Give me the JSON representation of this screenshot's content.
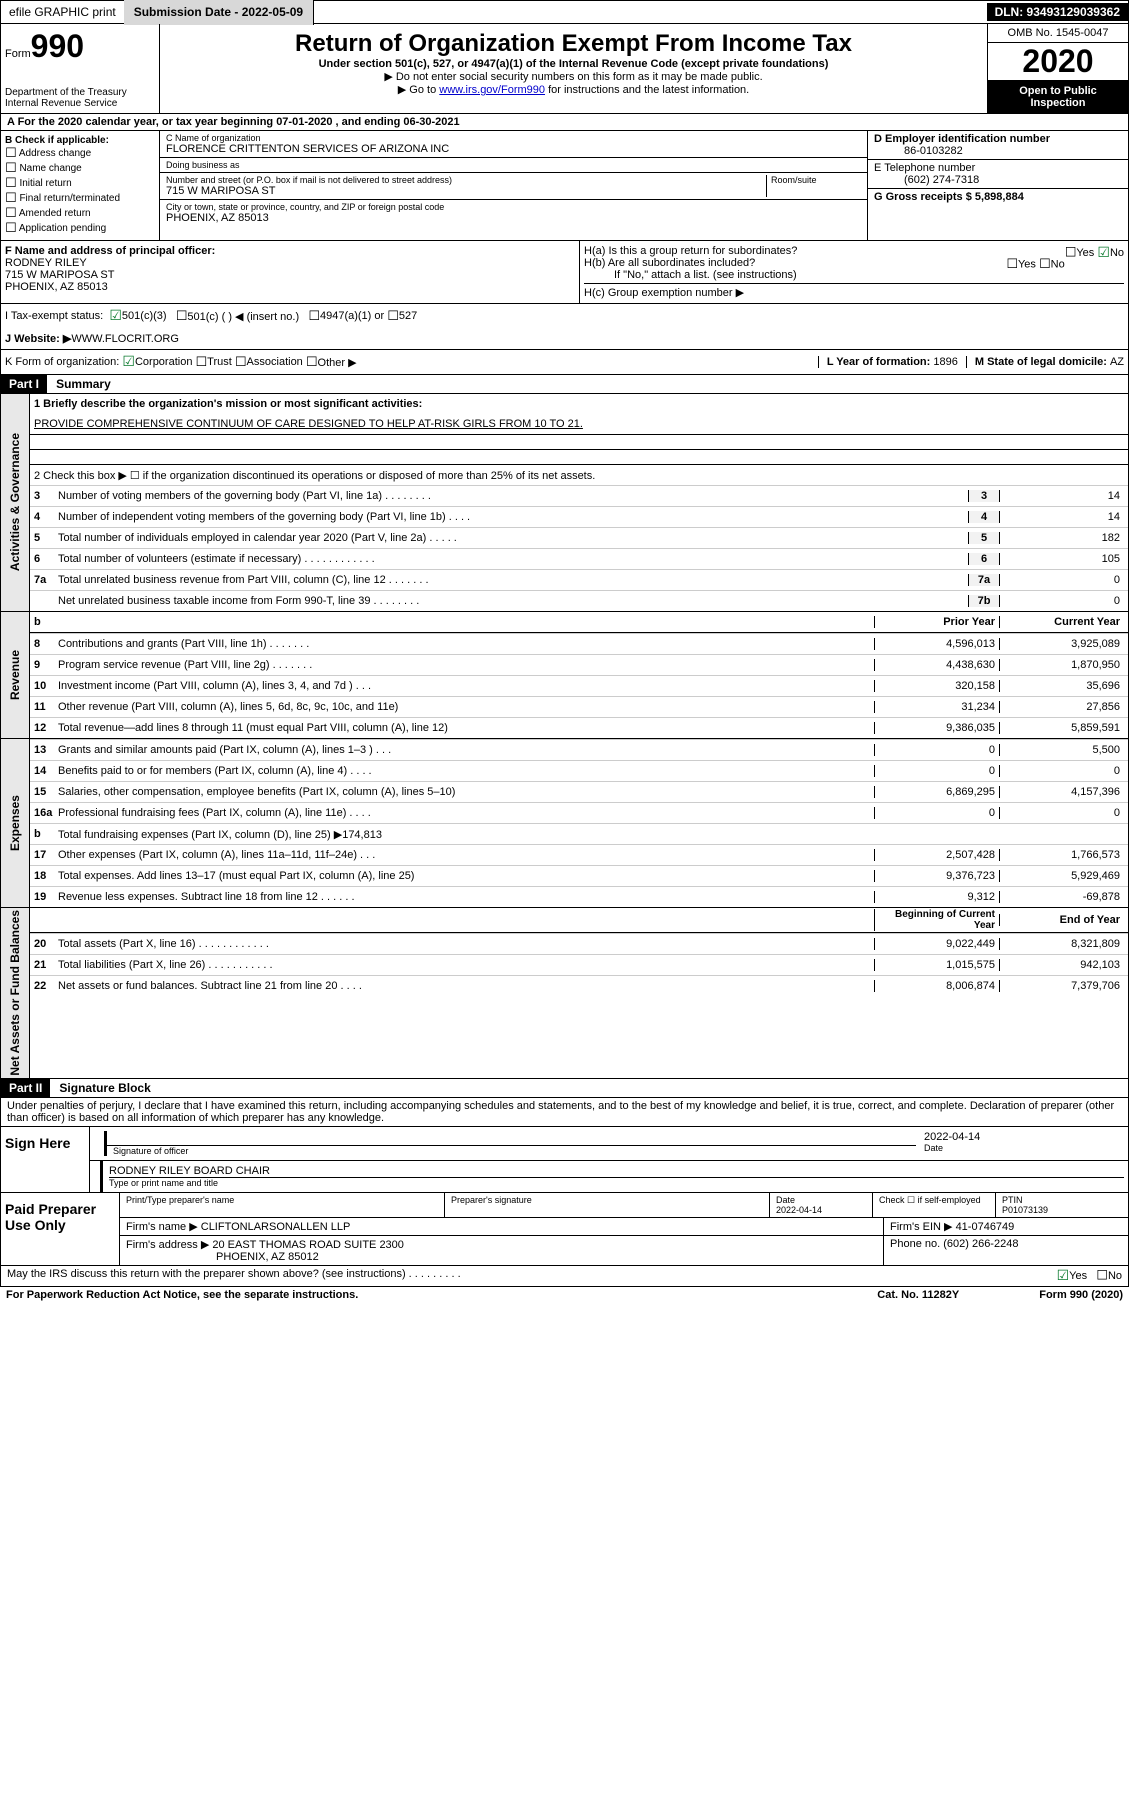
{
  "colors": {
    "black": "#000000",
    "white": "#ffffff",
    "gray_btn": "#d8d8d8",
    "gray_vcol": "#e8e8e8",
    "link": "#0000cc",
    "check_green": "#0b7a2e",
    "border": "#000000"
  },
  "topbar": {
    "efile": "efile GRAPHIC print",
    "submission_label": "Submission Date - 2022-05-09",
    "dln": "DLN: 93493129039362"
  },
  "header": {
    "form_label": "Form",
    "form_number": "990",
    "dept": "Department of the Treasury",
    "irs": "Internal Revenue Service",
    "title": "Return of Organization Exempt From Income Tax",
    "subtitle": "Under section 501(c), 527, or 4947(a)(1) of the Internal Revenue Code (except private foundations)",
    "note1": "▶ Do not enter social security numbers on this form as it may be made public.",
    "note2": "▶ Go to ",
    "note2_link": "www.irs.gov/Form990",
    "note2_after": " for instructions and the latest information.",
    "omb": "OMB No. 1545-0047",
    "year": "2020",
    "open": "Open to Public Inspection"
  },
  "lineA": "A For the 2020 calendar year, or tax year beginning 07-01-2020   , and ending 06-30-2021",
  "B": {
    "heading": "B Check if applicable:",
    "items": [
      "Address change",
      "Name change",
      "Initial return",
      "Final return/terminated",
      "Amended return",
      "Application pending"
    ]
  },
  "C": {
    "name_label": "C Name of organization",
    "name": "FLORENCE CRITTENTON SERVICES OF ARIZONA INC",
    "dba_label": "Doing business as",
    "dba": "",
    "street_label": "Number and street (or P.O. box if mail is not delivered to street address)",
    "room_label": "Room/suite",
    "street": "715 W MARIPOSA ST",
    "city_label": "City or town, state or province, country, and ZIP or foreign postal code",
    "city": "PHOENIX, AZ  85013"
  },
  "D": {
    "ein_label": "D Employer identification number",
    "ein": "86-0103282"
  },
  "E": {
    "phone_label": "E Telephone number",
    "phone": "(602) 274-7318"
  },
  "G": {
    "gross_label": "G Gross receipts $ ",
    "gross": "5,898,884"
  },
  "F": {
    "label": "F  Name and address of principal officer:",
    "name": "RODNEY RILEY",
    "street": "715 W MARIPOSA ST",
    "city": "PHOENIX, AZ  85013"
  },
  "H": {
    "a": "H(a)  Is this a group return for subordinates?",
    "a_yes": "Yes",
    "a_no": "No",
    "b": "H(b)  Are all subordinates included?",
    "b_yes": "Yes",
    "b_no": "No",
    "b_note": "If \"No,\" attach a list. (see instructions)",
    "c": "H(c)  Group exemption number ▶"
  },
  "I": {
    "label": "I    Tax-exempt status:",
    "opt1": "501(c)(3)",
    "opt2": "501(c) (  ) ◀ (insert no.)",
    "opt3": "4947(a)(1) or",
    "opt4": "527"
  },
  "J": {
    "label": "J    Website: ▶  ",
    "value": "WWW.FLOCRIT.ORG"
  },
  "K": {
    "label": "K Form of organization:",
    "opts": [
      "Corporation",
      "Trust",
      "Association",
      "Other ▶"
    ]
  },
  "L": {
    "label": "L Year of formation: ",
    "value": "1896"
  },
  "M": {
    "label": "M State of legal domicile: ",
    "value": "AZ"
  },
  "partI": {
    "hdr": "Part I",
    "title": "Summary",
    "gov_label": "Activities & Governance",
    "rev_label": "Revenue",
    "exp_label": "Expenses",
    "nab_label": "Net Assets or Fund Balances",
    "line1_label": "1  Briefly describe the organization's mission or most significant activities:",
    "line1_text": "PROVIDE COMPREHENSIVE CONTINUUM OF CARE DESIGNED TO HELP AT-RISK GIRLS FROM 10 TO 21.",
    "line2": "2   Check this box ▶ ☐  if the organization discontinued its operations or disposed of more than 25% of its net assets.",
    "rows_gov": [
      {
        "n": "3",
        "t": "Number of voting members of the governing body (Part VI, line 1a)  .   .   .   .   .   .   .   .",
        "b": "3",
        "v": "14"
      },
      {
        "n": "4",
        "t": "Number of independent voting members of the governing body (Part VI, line 1b)   .   .   .   .",
        "b": "4",
        "v": "14"
      },
      {
        "n": "5",
        "t": "Total number of individuals employed in calendar year 2020 (Part V, line 2a)    .   .   .   .   .",
        "b": "5",
        "v": "182"
      },
      {
        "n": "6",
        "t": "Total number of volunteers (estimate if necessary)   .   .   .   .   .   .   .   .   .   .   .   .",
        "b": "6",
        "v": "105"
      },
      {
        "n": "7a",
        "t": "Total unrelated business revenue from Part VIII, column (C), line 12   .   .   .   .   .   .   .",
        "b": "7a",
        "v": "0"
      },
      {
        "n": "",
        "t": "Net unrelated business taxable income from Form 990-T, line 39   .   .   .   .   .   .   .   .",
        "b": "7b",
        "v": "0"
      }
    ],
    "col_prior": "Prior Year",
    "col_current": "Current Year",
    "rows_rev": [
      {
        "n": "8",
        "t": "Contributions and grants (Part VIII, line 1h)   .   .   .   .   .   .   .",
        "p": "4,596,013",
        "c": "3,925,089"
      },
      {
        "n": "9",
        "t": "Program service revenue (Part VIII, line 2g)   .   .   .   .   .   .   .",
        "p": "4,438,630",
        "c": "1,870,950"
      },
      {
        "n": "10",
        "t": "Investment income (Part VIII, column (A), lines 3, 4, and 7d )   .   .   .",
        "p": "320,158",
        "c": "35,696"
      },
      {
        "n": "11",
        "t": "Other revenue (Part VIII, column (A), lines 5, 6d, 8c, 9c, 10c, and 11e)",
        "p": "31,234",
        "c": "27,856"
      },
      {
        "n": "12",
        "t": "Total revenue—add lines 8 through 11 (must equal Part VIII, column (A), line 12)",
        "p": "9,386,035",
        "c": "5,859,591"
      }
    ],
    "rows_exp": [
      {
        "n": "13",
        "t": "Grants and similar amounts paid (Part IX, column (A), lines 1–3 )   .   .   .",
        "p": "0",
        "c": "5,500"
      },
      {
        "n": "14",
        "t": "Benefits paid to or for members (Part IX, column (A), line 4)   .   .   .   .",
        "p": "0",
        "c": "0"
      },
      {
        "n": "15",
        "t": "Salaries, other compensation, employee benefits (Part IX, column (A), lines 5–10)",
        "p": "6,869,295",
        "c": "4,157,396"
      },
      {
        "n": "16a",
        "t": "Professional fundraising fees (Part IX, column (A), line 11e)   .   .   .   .",
        "p": "0",
        "c": "0"
      },
      {
        "n": "b",
        "t": "Total fundraising expenses (Part IX, column (D), line 25) ▶174,813",
        "p": "",
        "c": "",
        "shaded": true
      },
      {
        "n": "17",
        "t": "Other expenses (Part IX, column (A), lines 11a–11d, 11f–24e)   .   .   .",
        "p": "2,507,428",
        "c": "1,766,573"
      },
      {
        "n": "18",
        "t": "Total expenses. Add lines 13–17 (must equal Part IX, column (A), line 25)",
        "p": "9,376,723",
        "c": "5,929,469"
      },
      {
        "n": "19",
        "t": "Revenue less expenses. Subtract line 18 from line 12   .   .   .   .   .   .",
        "p": "9,312",
        "c": "-69,878"
      }
    ],
    "col_begin": "Beginning of Current Year",
    "col_end": "End of Year",
    "rows_nab": [
      {
        "n": "20",
        "t": "Total assets (Part X, line 16)   .   .   .   .   .   .   .   .   .   .   .   .",
        "p": "9,022,449",
        "c": "8,321,809"
      },
      {
        "n": "21",
        "t": "Total liabilities (Part X, line 26)   .   .   .   .   .   .   .   .   .   .   .",
        "p": "1,015,575",
        "c": "942,103"
      },
      {
        "n": "22",
        "t": "Net assets or fund balances. Subtract line 21 from line 20   .   .   .   .",
        "p": "8,006,874",
        "c": "7,379,706"
      }
    ]
  },
  "partII": {
    "hdr": "Part II",
    "title": "Signature Block",
    "perjury": "Under penalties of perjury, I declare that I have examined this return, including accompanying schedules and statements, and to the best of my knowledge and belief, it is true, correct, and complete. Declaration of preparer (other than officer) is based on all information of which preparer has any knowledge."
  },
  "sign": {
    "left": "Sign Here",
    "sig_label": "Signature of officer",
    "date": "2022-04-14",
    "date_label": "Date",
    "name": "RODNEY RILEY  BOARD CHAIR",
    "name_label": "Type or print name and title"
  },
  "paid": {
    "left": "Paid Preparer Use Only",
    "h1": "Print/Type preparer's name",
    "h2": "Preparer's signature",
    "h3_label": "Date",
    "h3": "2022-04-14",
    "h4_label": "Check ☐ if self-employed",
    "h5_label": "PTIN",
    "h5": "P01073139",
    "firm_name_label": "Firm's name    ▶",
    "firm_name": "CLIFTONLARSONALLEN LLP",
    "firm_ein_label": "Firm's EIN ▶",
    "firm_ein": "41-0746749",
    "firm_addr_label": "Firm's address ▶",
    "firm_addr1": "20 EAST THOMAS ROAD SUITE 2300",
    "firm_addr2": "PHOENIX, AZ  85012",
    "phone_label": "Phone no. ",
    "phone": "(602) 266-2248"
  },
  "discuss": {
    "text": "May the IRS discuss this return with the preparer shown above? (see instructions)   .   .   .   .   .   .   .   .   .",
    "yes": "Yes",
    "no": "No"
  },
  "footer": {
    "left": "For Paperwork Reduction Act Notice, see the separate instructions.",
    "mid": "Cat. No. 11282Y",
    "right": "Form 990 (2020)"
  }
}
